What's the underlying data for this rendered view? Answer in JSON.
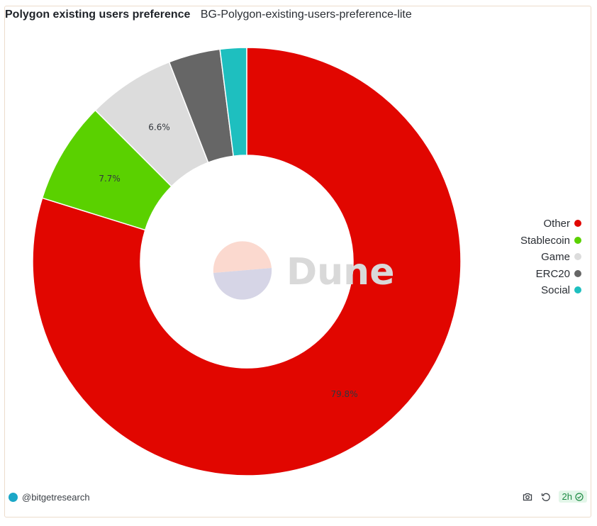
{
  "header": {
    "title": "Polygon existing users preference",
    "subtitle": "BG-Polygon-existing-users-preference-lite"
  },
  "watermark": {
    "text": "Dune"
  },
  "chart_data": {
    "type": "pie",
    "donut": true,
    "categories": [
      "Other",
      "Stablecoin",
      "Game",
      "ERC20",
      "Social"
    ],
    "values": [
      79.8,
      7.7,
      6.6,
      3.9,
      2.0
    ],
    "labels": [
      "79.8%",
      "7.7%",
      "6.6%",
      "",
      ""
    ],
    "colors": [
      "#e10600",
      "#5ad100",
      "#dcdcdc",
      "#666666",
      "#1ebfbf"
    ],
    "legend_position": "right"
  },
  "legend": {
    "items": [
      {
        "label": "Other",
        "color": "#e10600"
      },
      {
        "label": "Stablecoin",
        "color": "#5ad100"
      },
      {
        "label": "Game",
        "color": "#dcdcdc"
      },
      {
        "label": "ERC20",
        "color": "#666666"
      },
      {
        "label": "Social",
        "color": "#1ebfbf"
      }
    ]
  },
  "footer": {
    "author": "@bitgetresearch",
    "age": "2h",
    "icons": [
      "camera-icon",
      "refresh-icon",
      "check-circle-icon"
    ],
    "badge_color": "#1d8a43"
  }
}
